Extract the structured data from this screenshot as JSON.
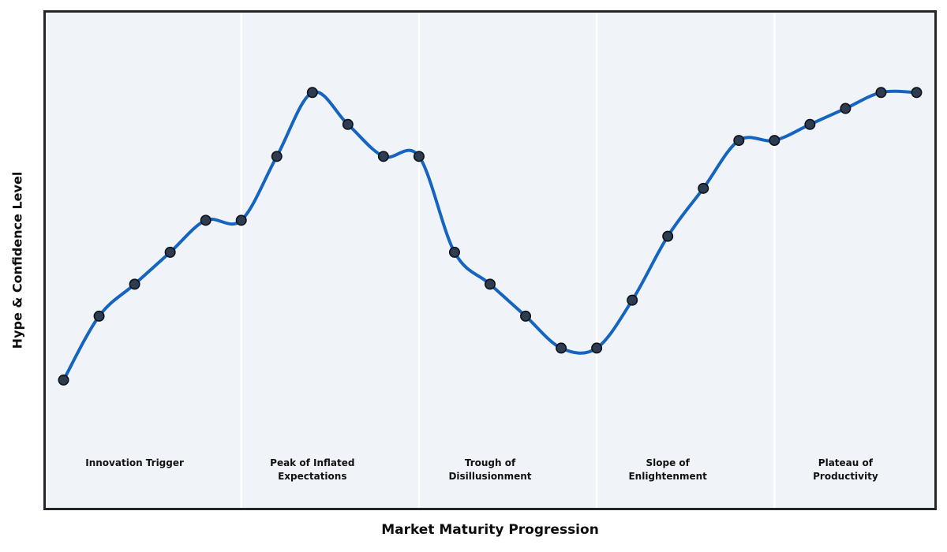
{
  "chart_data": {
    "type": "line",
    "title": "",
    "xlabel": "Market Maturity Progression",
    "ylabel": "Hype & Confidence Level",
    "x": [
      0,
      1,
      2,
      3,
      4,
      5,
      6,
      7,
      8,
      9,
      10,
      11,
      12,
      13,
      14,
      15,
      16,
      17,
      18,
      19,
      20,
      21,
      22,
      23,
      24
    ],
    "series": [
      {
        "name": "Hype & Confidence",
        "values": [
          2,
          4,
          5,
          6,
          7,
          7,
          9,
          11,
          10,
          9,
          9,
          6,
          5,
          4,
          3,
          3,
          4.5,
          6.5,
          8,
          9.5,
          9.5,
          10,
          10.5,
          11,
          11
        ]
      }
    ],
    "xlim": [
      -0.5,
      24.5
    ],
    "ylim": [
      -2,
      13.5
    ],
    "grid": false,
    "legend": "none",
    "smooth": true,
    "markers": true,
    "phases": [
      {
        "label_lines": [
          "Innovation Trigger"
        ],
        "center_x": 2,
        "boundary_x": 5
      },
      {
        "label_lines": [
          "Peak of Inflated",
          "Expectations"
        ],
        "center_x": 7,
        "boundary_x": 10
      },
      {
        "label_lines": [
          "Trough of",
          "Disillusionment"
        ],
        "center_x": 12,
        "boundary_x": 15
      },
      {
        "label_lines": [
          "Slope of",
          "Enlightenment"
        ],
        "center_x": 17,
        "boundary_x": 20
      },
      {
        "label_lines": [
          "Plateau of",
          "Productivity"
        ],
        "center_x": 22,
        "boundary_x": null
      }
    ],
    "phase_label_y": -0.4,
    "colors": {
      "line": "#1565c0",
      "marker_fill": "#2d3c50",
      "marker_edge": "#0d1117",
      "plot_bg": "#f0f4f8",
      "border": "#262626",
      "separator": "#ffffff",
      "text": "#111111"
    }
  }
}
